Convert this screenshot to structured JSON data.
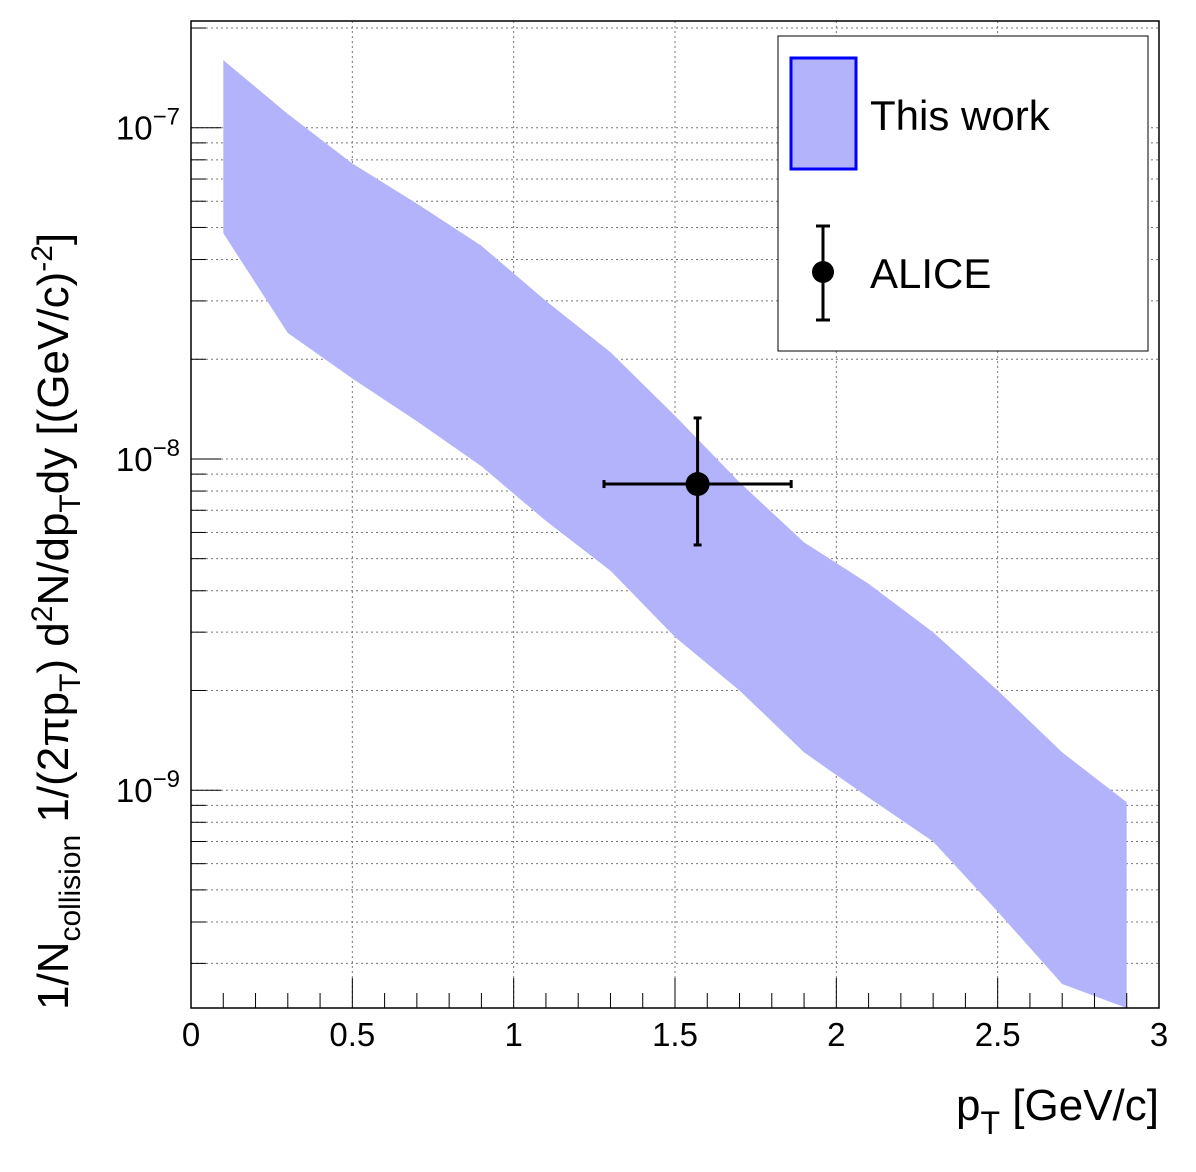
{
  "chart_data": {
    "type": "area",
    "xlabel": "p",
    "xlabel_sub": "T",
    "xlabel_unit": " [GeV/c]",
    "ylabel": {
      "part1": "1/N",
      "part1_sub": "collision",
      "part2": " 1/(2",
      "pi": "π",
      "part3": "p",
      "part3_sub": "T",
      "part4": ") d",
      "part4_sup": "2",
      "part5": "N/dp",
      "part5_sub": "T",
      "part6": "dy [(GeV/c)",
      "part6_sup": "-2",
      "part7": "]"
    },
    "xlim": [
      0,
      3
    ],
    "ylim": [
      2.2e-10,
      2.1e-07
    ],
    "y_scale": "log",
    "grid": true,
    "legend_position": "top-right",
    "x_ticks": [
      {
        "value": 0,
        "label": "0"
      },
      {
        "value": 0.5,
        "label": "0.5"
      },
      {
        "value": 1,
        "label": "1"
      },
      {
        "value": 1.5,
        "label": "1.5"
      },
      {
        "value": 2,
        "label": "2"
      },
      {
        "value": 2.5,
        "label": "2.5"
      },
      {
        "value": 3,
        "label": "3"
      }
    ],
    "y_ticks": [
      {
        "value": 1e-09,
        "base": "10",
        "exp": "−9"
      },
      {
        "value": 1e-08,
        "base": "10",
        "exp": "−8"
      },
      {
        "value": 1e-07,
        "base": "10",
        "exp": "−7"
      }
    ],
    "band": {
      "name": "This work",
      "color": "#b3b3fb",
      "border_color": "#0000ff",
      "x": [
        0.1,
        0.3,
        0.5,
        0.7,
        0.9,
        1.1,
        1.3,
        1.5,
        1.7,
        1.9,
        2.1,
        2.3,
        2.5,
        2.7,
        2.9
      ],
      "upper": [
        1.6e-07,
        1.1e-07,
        7.8e-08,
        5.9e-08,
        4.4e-08,
        3e-08,
        2.1e-08,
        1.35e-08,
        8.5e-09,
        5.6e-09,
        4.2e-09,
        3e-09,
        2e-09,
        1.3e-09,
        9.2e-10
      ],
      "lower": [
        4.8e-08,
        2.4e-08,
        1.75e-08,
        1.3e-08,
        9.5e-09,
        6.5e-09,
        4.6e-09,
        2.9e-09,
        2e-09,
        1.3e-09,
        9.5e-10,
        7e-10,
        4.3e-10,
        2.6e-10,
        2.2e-10
      ]
    },
    "points": {
      "name": "ALICE",
      "color": "#000000",
      "data": [
        {
          "x": 1.57,
          "y": 8.4e-09,
          "x_low": 1.28,
          "x_high": 1.86,
          "y_low": 5.5e-09,
          "y_high": 1.33e-08
        }
      ]
    }
  }
}
